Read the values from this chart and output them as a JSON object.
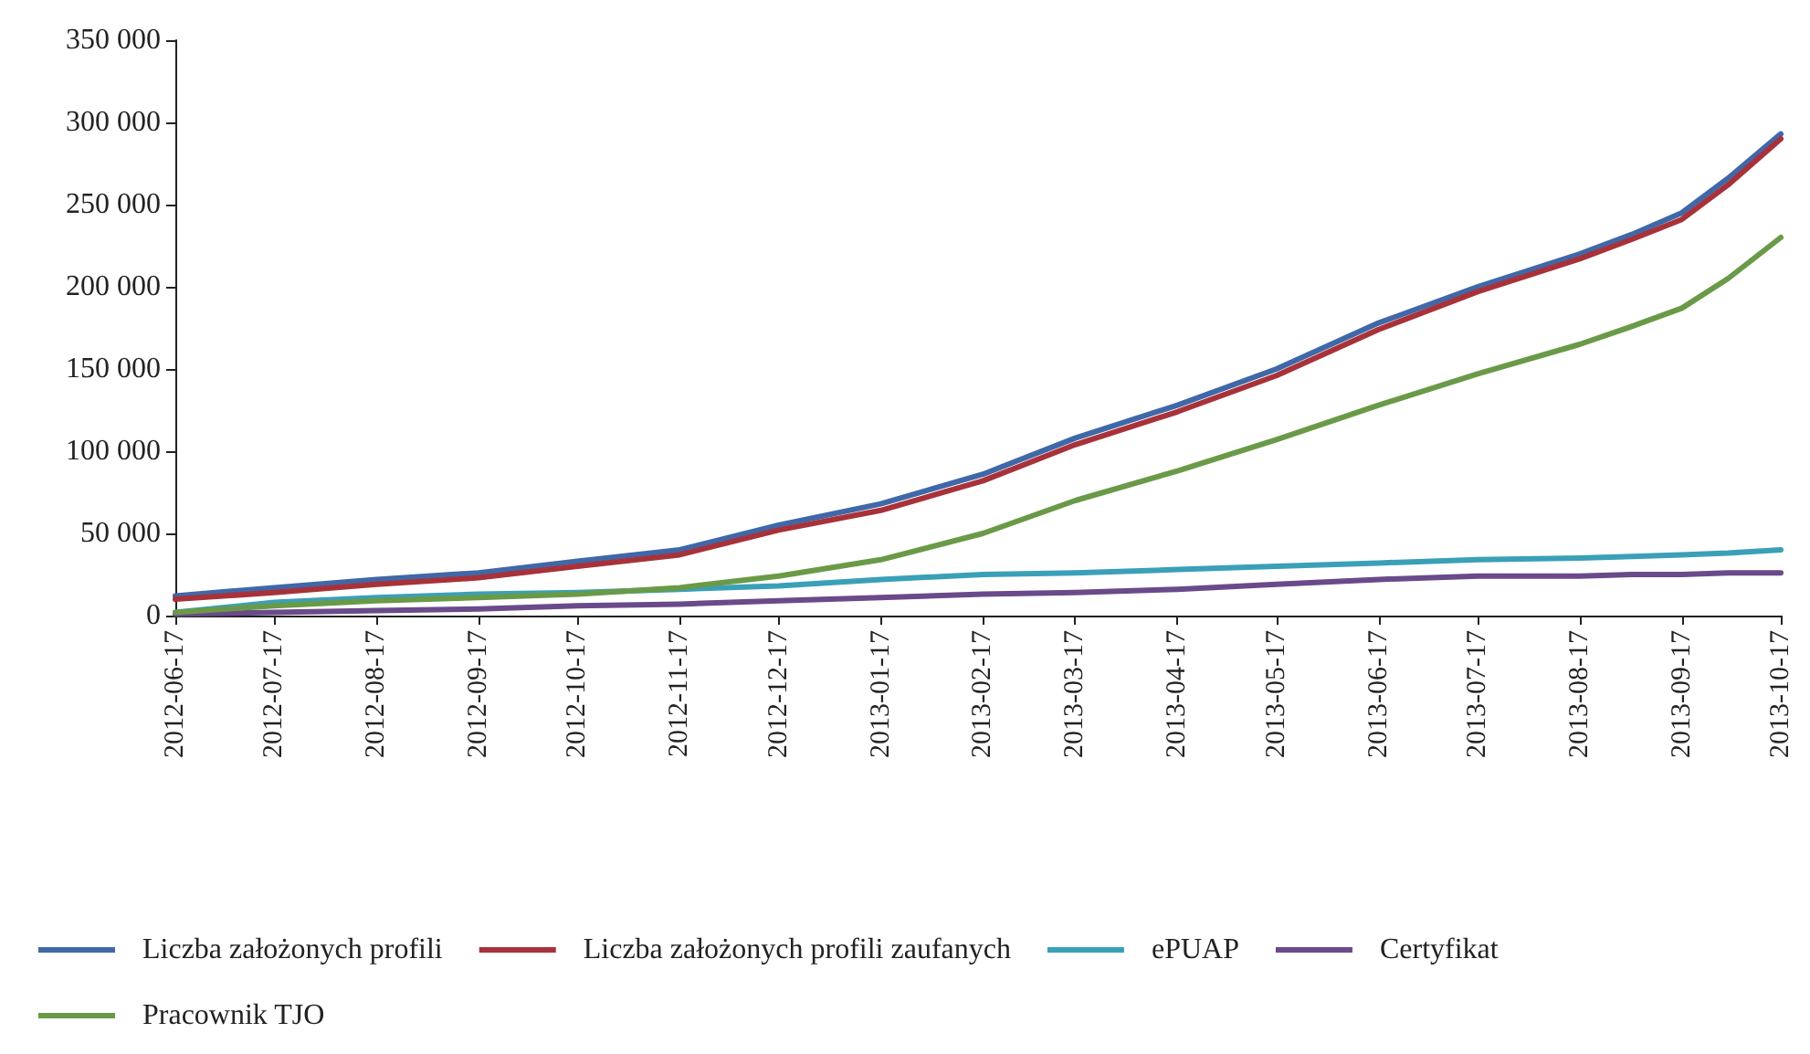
{
  "chart_data": {
    "type": "line",
    "x": [
      "2012-06-17",
      "2012-07-17",
      "2012-08-17",
      "2012-09-17",
      "2012-10-17",
      "2012-11-17",
      "2012-12-17",
      "2013-01-17",
      "2013-02-17",
      "2013-03-17",
      "2013-04-17",
      "2013-05-17",
      "2013-06-17",
      "2013-07-17",
      "2013-08-17",
      "2013-09-02",
      "2013-09-17",
      "2013-10-01",
      "2013-10-17"
    ],
    "series": [
      {
        "name": "Liczba założonych profili",
        "color": "#4068a8",
        "values": [
          12000,
          17000,
          22000,
          26000,
          33000,
          40000,
          55000,
          68000,
          86000,
          108000,
          128000,
          150000,
          178000,
          200000,
          220000,
          232000,
          245000,
          266000,
          293000
        ]
      },
      {
        "name": "Liczba założonych profili zaufanych",
        "color": "#a8323a",
        "values": [
          10000,
          14000,
          19000,
          23000,
          30000,
          37000,
          52000,
          64000,
          82000,
          104000,
          124000,
          146000,
          174000,
          197000,
          217000,
          229000,
          241000,
          262000,
          290000
        ]
      },
      {
        "name": "ePUAP",
        "color": "#3aa0b8",
        "values": [
          2000,
          8000,
          11000,
          13000,
          14000,
          16000,
          18000,
          22000,
          25000,
          26000,
          28000,
          30000,
          32000,
          34000,
          35000,
          36000,
          37000,
          38000,
          40000
        ]
      },
      {
        "name": "Certyfikat",
        "color": "#6a4a8a",
        "values": [
          1000,
          2000,
          3000,
          4000,
          6000,
          7000,
          9000,
          11000,
          13000,
          14000,
          16000,
          19000,
          22000,
          24000,
          24000,
          25000,
          25000,
          26000,
          26000
        ]
      },
      {
        "name": "Pracownik TJO",
        "color": "#6a9a48",
        "values": [
          2000,
          6000,
          9000,
          11000,
          13000,
          17000,
          24000,
          34000,
          50000,
          70000,
          88000,
          107000,
          128000,
          147000,
          165000,
          176000,
          187000,
          205000,
          230000
        ]
      }
    ],
    "xlim": [
      "2012-06-17",
      "2013-10-17"
    ],
    "xticks": [
      {
        "value": "2012-06-17",
        "label": "2012-06-17"
      },
      {
        "value": "2012-07-17",
        "label": "2012-07-17"
      },
      {
        "value": "2012-08-17",
        "label": "2012-08-17"
      },
      {
        "value": "2012-09-17",
        "label": "2012-09-17"
      },
      {
        "value": "2012-10-17",
        "label": "2012-10-17"
      },
      {
        "value": "2012-11-17",
        "label": "2012-11-17"
      },
      {
        "value": "2012-12-17",
        "label": "2012-12-17"
      },
      {
        "value": "2013-01-17",
        "label": "2013-01-17"
      },
      {
        "value": "2013-02-17",
        "label": "2013-02-17"
      },
      {
        "value": "2013-03-17",
        "label": "2013-03-17"
      },
      {
        "value": "2013-04-17",
        "label": "2013-04-17"
      },
      {
        "value": "2013-05-17",
        "label": "2013-05-17"
      },
      {
        "value": "2013-06-17",
        "label": "2013-06-17"
      },
      {
        "value": "2013-07-17",
        "label": "2013-07-17"
      },
      {
        "value": "2013-08-17",
        "label": "2013-08-17"
      },
      {
        "value": "2013-09-17",
        "label": "2013-09-17"
      },
      {
        "value": "2013-10-17",
        "label": "2013-10-17"
      }
    ],
    "ylim": [
      0,
      350000
    ],
    "yticks": [
      {
        "value": 0,
        "label": "0"
      },
      {
        "value": 50000,
        "label": "50 000"
      },
      {
        "value": 100000,
        "label": "100 000"
      },
      {
        "value": 150000,
        "label": "150 000"
      },
      {
        "value": 200000,
        "label": "200 000"
      },
      {
        "value": 250000,
        "label": "250 000"
      },
      {
        "value": 300000,
        "label": "300 000"
      },
      {
        "value": 350000,
        "label": "350 000"
      }
    ],
    "legend": "bottom",
    "marker": "none",
    "line_style": "solid"
  }
}
